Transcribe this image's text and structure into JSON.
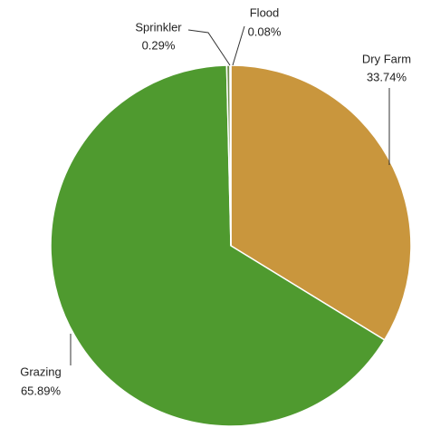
{
  "chart_data": {
    "type": "pie",
    "categories": [
      "Dry Farm",
      "Grazing",
      "Sprinkler",
      "Flood"
    ],
    "values": [
      33.74,
      65.89,
      0.29,
      0.08
    ],
    "value_labels": [
      "33.74%",
      "65.89%",
      "0.29%",
      "0.08%"
    ],
    "colors": [
      "#c9963d",
      "#4f9a2f",
      "#6f8d4b",
      "#8fa6b6"
    ]
  }
}
